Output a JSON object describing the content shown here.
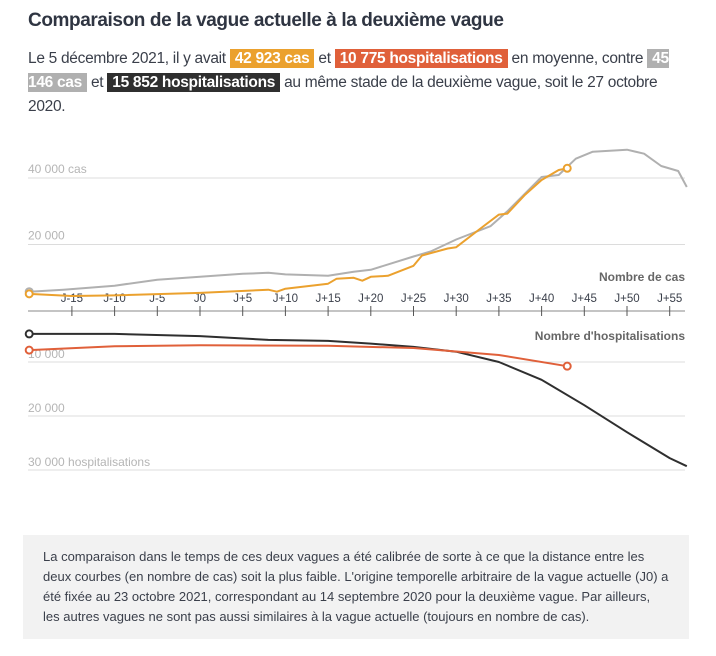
{
  "title": "Comparaison de la vague actuelle à la deuxième vague",
  "intro": {
    "t1": "Le 5 décembre 2021, il y avait ",
    "b1": "42 923 cas",
    "t2": " et ",
    "b2": "10 775 hospitalisations",
    "t3": " en moyenne, contre ",
    "b3": "45 146 cas",
    "t4": " et ",
    "b4": "15 852 hospitalisations",
    "t5": " au même stade de la deuxième vague, soit le 27 octobre 2020."
  },
  "colors": {
    "current_cases": "#eba12e",
    "current_hosp": "#e0603a",
    "second_cases": "#b0b0b0",
    "second_hosp": "#2f2f2f"
  },
  "note": "La comparaison dans le temps de ces deux vagues a été calibrée de sorte à ce que la distance entre les deux courbes (en nombre de cas) soit la plus faible. L'origine temporelle arbitraire de la vague actuelle (J0) a été fixée au 23 octobre 2021, correspondant au 14 septembre 2020 pour la deuxième vague. Par ailleurs, les autres vagues ne sont pas aussi similaires à la vague actuelle (toujours en nombre de cas).",
  "chart_data": [
    {
      "type": "line",
      "title": "Nombre de cas",
      "xlabel": "",
      "ylabel": "",
      "x_ticks": [
        "J-15",
        "J-10",
        "J-5",
        "J0",
        "J+5",
        "J+10",
        "J+15",
        "J+20",
        "J+25",
        "J+30",
        "J+35",
        "J+40",
        "J+45",
        "J+50",
        "J+55"
      ],
      "x_tick_values": [
        -15,
        -10,
        -5,
        0,
        5,
        10,
        15,
        20,
        25,
        30,
        35,
        40,
        45,
        50,
        55
      ],
      "xlim": [
        -20,
        57
      ],
      "ylim": [
        0,
        50000
      ],
      "y_ticks": [
        {
          "value": 20000,
          "label": "20 000"
        },
        {
          "value": 40000,
          "label": "40 000 cas"
        }
      ],
      "grid": true,
      "series": [
        {
          "key": "second",
          "x": [
            -20,
            -16,
            -10,
            -5,
            0,
            5,
            8,
            10,
            15,
            18,
            20,
            25,
            27,
            30,
            34,
            36,
            40,
            42,
            44,
            46,
            50,
            52,
            54,
            56,
            57
          ],
          "y": [
            5800,
            6400,
            7600,
            9400,
            10300,
            11200,
            11500,
            11000,
            10600,
            11800,
            12400,
            16400,
            17900,
            21500,
            25500,
            30000,
            40300,
            40900,
            45800,
            47900,
            48500,
            47300,
            43600,
            42100,
            37300
          ]
        },
        {
          "key": "current",
          "x": [
            -20,
            -15,
            -10,
            0,
            8,
            9,
            10,
            15,
            16,
            18,
            19,
            20,
            22,
            25,
            26,
            29,
            30,
            33,
            35,
            36,
            38,
            40,
            42,
            43
          ],
          "y": [
            5150,
            4500,
            4700,
            5450,
            6400,
            5800,
            6700,
            8200,
            9700,
            10000,
            9100,
            10300,
            10600,
            13600,
            16700,
            18800,
            19200,
            25100,
            29000,
            29300,
            34800,
            39400,
            42400,
            42923
          ]
        }
      ]
    },
    {
      "type": "line",
      "title": "Nombre d'hospitalisations",
      "xlim": [
        -20,
        57
      ],
      "ylim": [
        0,
        30000
      ],
      "inverted_y": true,
      "y_ticks": [
        {
          "value": 10000,
          "label": "10 000"
        },
        {
          "value": 20000,
          "label": "20 000"
        },
        {
          "value": 30000,
          "label": "30 000 hospitalisations"
        }
      ],
      "grid": true,
      "series": [
        {
          "key": "second",
          "x": [
            -20,
            -10,
            0,
            8,
            15,
            20,
            25,
            30,
            35,
            40,
            45,
            50,
            55,
            57
          ],
          "y": [
            4800,
            4800,
            5200,
            5900,
            6100,
            6600,
            7200,
            8100,
            10000,
            13300,
            18000,
            23000,
            27800,
            29300
          ]
        },
        {
          "key": "current",
          "x": [
            -20,
            -10,
            0,
            15,
            25,
            35,
            43
          ],
          "y": [
            7800,
            7100,
            6900,
            7000,
            7400,
            8700,
            10775
          ]
        }
      ]
    }
  ]
}
